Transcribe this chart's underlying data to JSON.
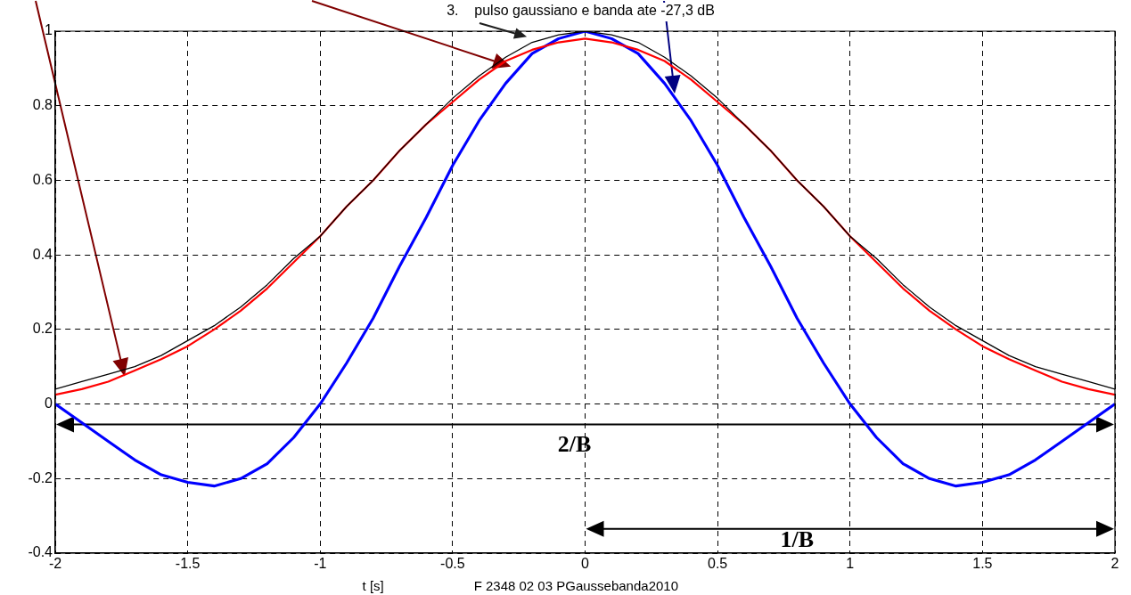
{
  "chart_data": {
    "type": "line",
    "title": "3.    pulso gaussiano e banda ate -27,3 dB",
    "xlabel": "t [s]",
    "x": [
      -2,
      -1.9,
      -1.8,
      -1.7,
      -1.6,
      -1.5,
      -1.4,
      -1.3,
      -1.2,
      -1.1,
      -1,
      -0.9,
      -0.8,
      -0.7,
      -0.6,
      -0.5,
      -0.4,
      -0.3,
      -0.2,
      -0.1,
      0,
      0.1,
      0.2,
      0.3,
      0.4,
      0.5,
      0.6,
      0.7,
      0.8,
      0.9,
      1,
      1.1,
      1.2,
      1.3,
      1.4,
      1.5,
      1.6,
      1.7,
      1.8,
      1.9,
      2
    ],
    "series": [
      {
        "color": "#000000",
        "values": [
          0.04,
          0.06,
          0.08,
          0.1,
          0.13,
          0.17,
          0.21,
          0.26,
          0.32,
          0.39,
          0.45,
          0.53,
          0.6,
          0.68,
          0.75,
          0.82,
          0.88,
          0.93,
          0.97,
          0.99,
          1,
          0.99,
          0.97,
          0.93,
          0.88,
          0.82,
          0.75,
          0.68,
          0.6,
          0.53,
          0.45,
          0.39,
          0.32,
          0.26,
          0.21,
          0.17,
          0.13,
          0.1,
          0.08,
          0.06,
          0.04
        ]
      },
      {
        "color": "#ff0000",
        "values": [
          0.025,
          0.04,
          0.06,
          0.09,
          0.12,
          0.155,
          0.2,
          0.25,
          0.31,
          0.38,
          0.45,
          0.53,
          0.6,
          0.68,
          0.75,
          0.81,
          0.87,
          0.92,
          0.95,
          0.97,
          0.98,
          0.97,
          0.95,
          0.92,
          0.87,
          0.81,
          0.75,
          0.68,
          0.6,
          0.53,
          0.45,
          0.38,
          0.31,
          0.25,
          0.2,
          0.155,
          0.12,
          0.09,
          0.06,
          0.04,
          0.025
        ]
      },
      {
        "color": "#0000ff",
        "values": [
          0,
          -0.05,
          -0.1,
          -0.15,
          -0.19,
          -0.21,
          -0.22,
          -0.2,
          -0.16,
          -0.09,
          0,
          0.11,
          0.23,
          0.37,
          0.5,
          0.64,
          0.76,
          0.86,
          0.94,
          0.98,
          1,
          0.98,
          0.94,
          0.86,
          0.76,
          0.64,
          0.5,
          0.37,
          0.23,
          0.11,
          0,
          -0.09,
          -0.16,
          -0.2,
          -0.22,
          -0.21,
          -0.19,
          -0.15,
          -0.1,
          -0.05,
          0
        ]
      }
    ],
    "xlim": [
      -2,
      2
    ],
    "xticks": [
      -2,
      -1.5,
      -1,
      -0.5,
      0,
      0.5,
      1,
      1.5,
      2
    ],
    "ylim": [
      -0.4,
      1
    ],
    "yticks": [
      -0.4,
      -0.2,
      0,
      0.2,
      0.4,
      0.6,
      0.8,
      1
    ],
    "grid": true,
    "legend": false,
    "annotations": [
      "2/B",
      "1/B",
      "F 2348 02 03 PGaussebanda2010"
    ]
  }
}
